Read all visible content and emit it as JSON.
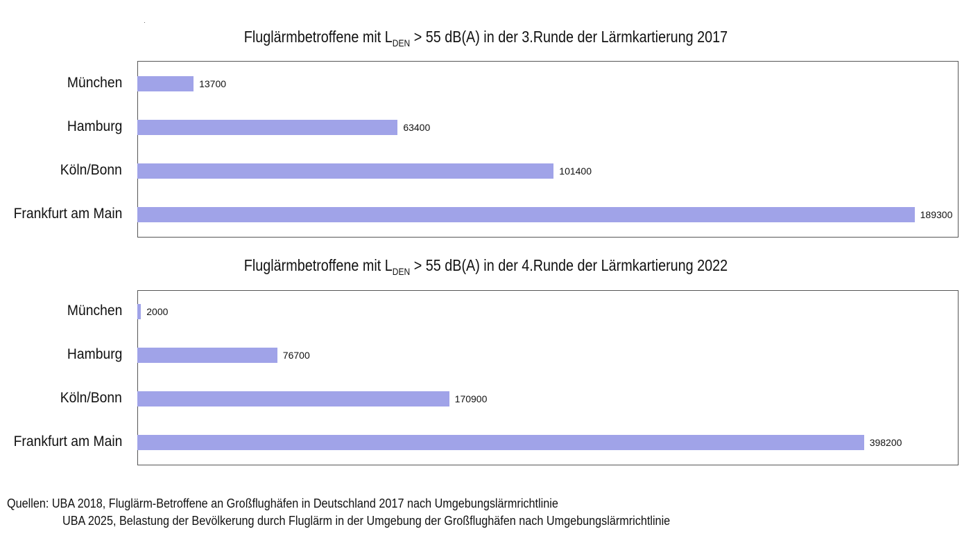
{
  "chart_data": [
    {
      "type": "bar",
      "orientation": "horizontal",
      "title_prefix": "Fluglärmbetroffene mit L",
      "title_subscript": "DEN",
      "title_suffix": " > 55 dB(A) in der 3.Runde der Lärmkartierung 2017",
      "categories": [
        "München",
        "Hamburg",
        "Köln/Bonn",
        "Frankfurt am Main"
      ],
      "values": [
        13700,
        63400,
        101400,
        189300
      ],
      "data_labels": [
        "13700",
        "63400",
        "101400",
        "189300"
      ],
      "xlim": [
        0,
        200000
      ],
      "grid": false,
      "bar_color": "#a0a3e8"
    },
    {
      "type": "bar",
      "orientation": "horizontal",
      "title_prefix": "Fluglärmbetroffene mit L",
      "title_subscript": "DEN",
      "title_suffix": " > 55 dB(A) in der 4.Runde der Lärmkartierung 2022",
      "categories": [
        "München",
        "Hamburg",
        "Köln/Bonn",
        "Frankfurt am Main"
      ],
      "values": [
        2000,
        76700,
        170900,
        398200
      ],
      "data_labels": [
        "2000",
        "76700",
        "170900",
        "398200"
      ],
      "xlim": [
        0,
        450000
      ],
      "grid": false,
      "bar_color": "#a0a3e8"
    }
  ],
  "sources": {
    "line1": "Quellen: UBA 2018, Fluglärm-Betroffene an Großflughäfen in Deutschland 2017 nach Umgebungslärmrichtlinie",
    "line2": "UBA 2025, Belastung der Bevölkerung durch Fluglärm in der Umgebung der Großflughäfen nach Umgebungslärmrichtlinie"
  }
}
